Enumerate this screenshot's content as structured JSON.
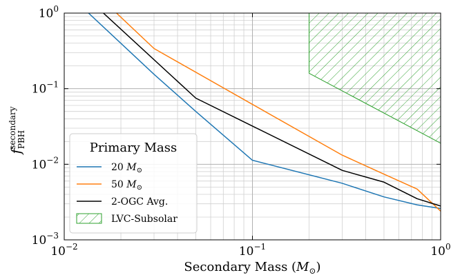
{
  "chart_data": {
    "type": "line",
    "xlabel": "Secondary Mass (M⊙)",
    "ylabel": "f PBH secondary",
    "xscale": "log",
    "yscale": "log",
    "xlim": [
      0.01,
      1
    ],
    "ylim": [
      0.001,
      1
    ],
    "grid": "major and minor",
    "x_tick_labels": [
      {
        "value": 0.01,
        "base": "10",
        "exp": "−2"
      },
      {
        "value": 0.1,
        "base": "10",
        "exp": "−1"
      },
      {
        "value": 1,
        "base": "10",
        "exp": "0"
      }
    ],
    "y_tick_labels": [
      {
        "value": 0.001,
        "base": "10",
        "exp": "−3"
      },
      {
        "value": 0.01,
        "base": "10",
        "exp": "−2"
      },
      {
        "value": 0.1,
        "base": "10",
        "exp": "−1"
      },
      {
        "value": 1,
        "base": "10",
        "exp": "0"
      }
    ],
    "series": [
      {
        "name": "20 M⊙",
        "color": "#1f77b4",
        "x": [
          0.01,
          0.03,
          0.05,
          0.1,
          0.3,
          0.5,
          0.75,
          1.0
        ],
        "y": [
          2.0,
          0.155,
          0.05,
          0.0113,
          0.0056,
          0.0037,
          0.0029,
          0.0026
        ]
      },
      {
        "name": "50 M⊙",
        "color": "#ff7f0e",
        "x": [
          0.01,
          0.03,
          0.1,
          0.3,
          0.5,
          0.75,
          1.0
        ],
        "y": [
          4.5,
          0.34,
          0.062,
          0.0132,
          0.0074,
          0.0047,
          0.0024
        ]
      },
      {
        "name": "2-OGC Avg.",
        "color": "#000000",
        "x": [
          0.01,
          0.05,
          0.1,
          0.3,
          0.5,
          0.75,
          1.0
        ],
        "y": [
          3.0,
          0.075,
          0.032,
          0.0083,
          0.0058,
          0.0035,
          0.0028
        ]
      }
    ],
    "region": {
      "name": "LVC-Subsolar",
      "color": "#2ca02c",
      "pattern": "hatched",
      "x": [
        0.2,
        0.2,
        1.0,
        1.0
      ],
      "y": [
        1.0,
        0.16,
        0.019,
        1.0
      ]
    },
    "legend": {
      "title": "Primary Mass",
      "position": "lower-left",
      "entries": [
        "20 M⊙",
        "50 M⊙",
        "2-OGC Avg.",
        "LVC-Subsolar"
      ]
    }
  }
}
